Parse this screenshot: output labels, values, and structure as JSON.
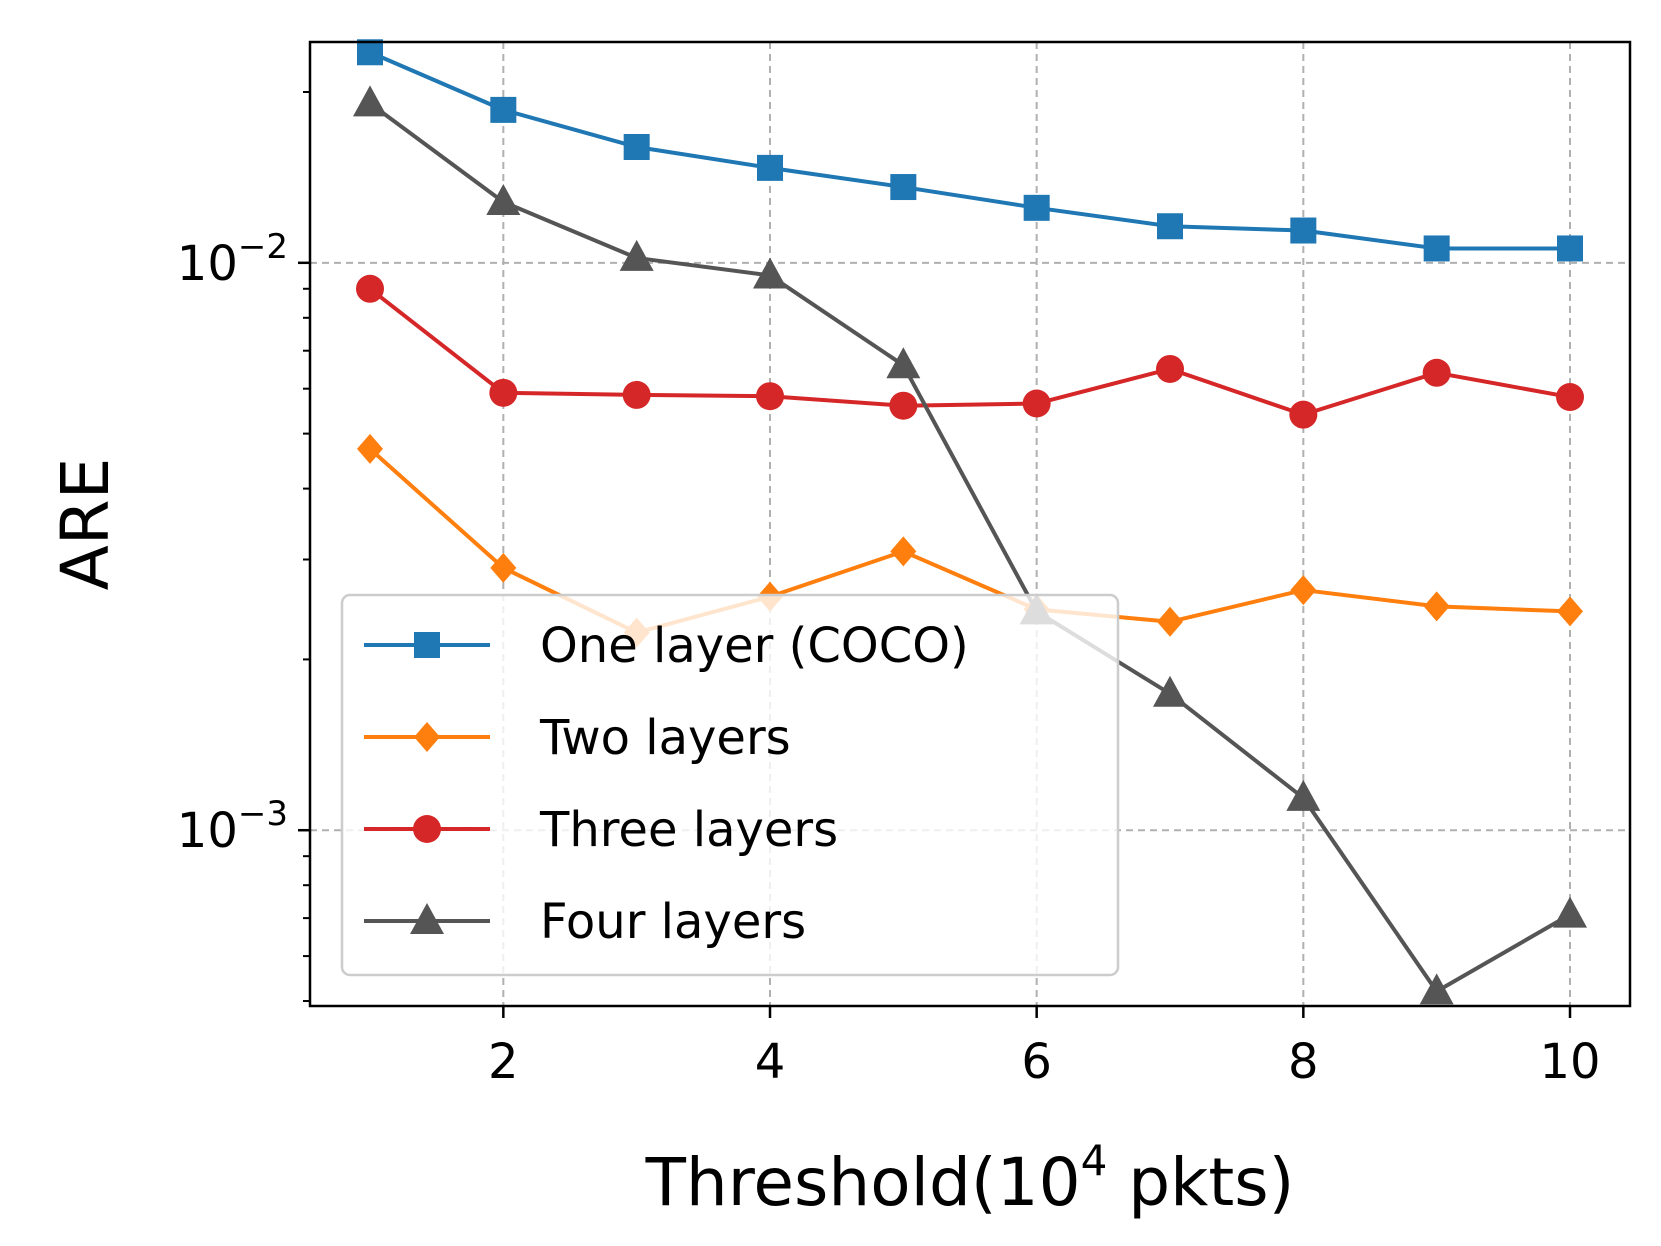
{
  "chart_data": {
    "type": "line",
    "title": "",
    "xlabel": "Threshold(10^4 pkts)",
    "xlabel_parts": {
      "base": "Threshold(10",
      "exp": "4",
      "tail": " pkts)"
    },
    "ylabel": "ARE",
    "yscale": "log",
    "xlim": [
      0.55,
      10.45
    ],
    "ylim": [
      0.00049,
      0.0245
    ],
    "x": [
      1,
      2,
      3,
      4,
      5,
      6,
      7,
      8,
      9,
      10
    ],
    "x_ticks": [
      2,
      4,
      6,
      8,
      10
    ],
    "x_tick_labels": [
      "2",
      "4",
      "6",
      "8",
      "10"
    ],
    "y_major_ticks": [
      0.001,
      0.01
    ],
    "y_tick_labels": [
      {
        "base": "10",
        "exp": "−3",
        "value": 0.001
      },
      {
        "base": "10",
        "exp": "−2",
        "value": 0.01
      }
    ],
    "grid": true,
    "legend_position": "lower-left",
    "series": [
      {
        "name": "One layer (COCO)",
        "color": "#1f77b4",
        "marker": "square",
        "values": [
          0.0235,
          0.0186,
          0.016,
          0.0147,
          0.0136,
          0.0125,
          0.0116,
          0.0114,
          0.0106,
          0.0106
        ]
      },
      {
        "name": "Two layers",
        "color": "#ff7f0e",
        "marker": "diamond",
        "values": [
          0.0047,
          0.0029,
          0.00223,
          0.00258,
          0.0031,
          0.00245,
          0.00233,
          0.00265,
          0.00248,
          0.00243
        ]
      },
      {
        "name": "Three layers",
        "color": "#d62728",
        "marker": "circle",
        "values": [
          0.009,
          0.0059,
          0.00585,
          0.00582,
          0.0056,
          0.00565,
          0.0065,
          0.0054,
          0.0064,
          0.0058
        ]
      },
      {
        "name": "Four layers",
        "color": "#555555",
        "marker": "triangle",
        "values": [
          0.0191,
          0.0128,
          0.0102,
          0.0095,
          0.0066,
          0.00243,
          0.00174,
          0.00114,
          0.00052,
          0.00071
        ]
      }
    ]
  }
}
